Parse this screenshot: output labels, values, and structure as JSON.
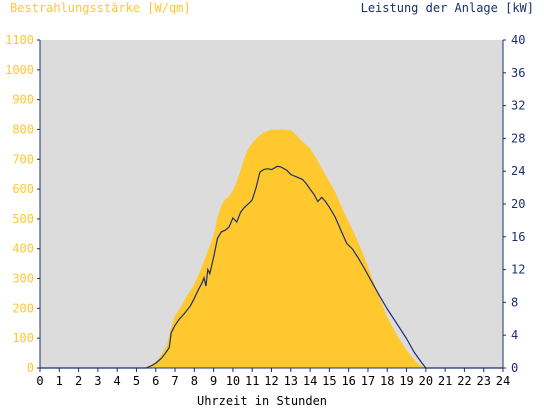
{
  "chart_data": {
    "type": "area",
    "title_left": "Bestrahlungsstärke [W/qm]",
    "title_right": "Leistung der Anlage [kW]",
    "xlabel": "Uhrzeit in Stunden",
    "xlim": [
      0,
      24
    ],
    "x_ticks": [
      "0",
      "1",
      "2",
      "3",
      "4",
      "5",
      "6",
      "7",
      "8",
      "9",
      "10",
      "11",
      "12",
      "13",
      "14",
      "15",
      "16",
      "17",
      "18",
      "19",
      "20",
      "21",
      "22",
      "23",
      "24"
    ],
    "y_left": {
      "lim": [
        0,
        1100
      ],
      "ticks": [
        "0",
        "100",
        "200",
        "300",
        "400",
        "500",
        "600",
        "700",
        "800",
        "900",
        "1000",
        "1100"
      ],
      "color": "#ffc82e"
    },
    "y_right": {
      "lim": [
        0,
        40
      ],
      "ticks": [
        "0",
        "4",
        "8",
        "12",
        "16",
        "20",
        "24",
        "28",
        "32",
        "36",
        "40"
      ],
      "color": "#1b2f6e"
    },
    "grid": false,
    "colors": {
      "plot_background": "#dcdcdc",
      "irradiance_fill": "#ffc82e",
      "power_line": "#1b2f6e",
      "axis": "#1b2f6e"
    },
    "series": [
      {
        "axis": "left",
        "style": "area",
        "points": [
          [
            0,
            0
          ],
          [
            5.3,
            0
          ],
          [
            5.6,
            5
          ],
          [
            6,
            20
          ],
          [
            6.3,
            45
          ],
          [
            6.6,
            80
          ],
          [
            6.8,
            140
          ],
          [
            7,
            175
          ],
          [
            7.3,
            205
          ],
          [
            7.6,
            240
          ],
          [
            8,
            280
          ],
          [
            8.3,
            325
          ],
          [
            8.6,
            375
          ],
          [
            8.8,
            410
          ],
          [
            9,
            445
          ],
          [
            9.2,
            505
          ],
          [
            9.4,
            545
          ],
          [
            9.6,
            565
          ],
          [
            9.8,
            575
          ],
          [
            10,
            595
          ],
          [
            10.2,
            625
          ],
          [
            10.4,
            665
          ],
          [
            10.6,
            705
          ],
          [
            10.8,
            735
          ],
          [
            11,
            755
          ],
          [
            11.3,
            775
          ],
          [
            11.6,
            790
          ],
          [
            12,
            800
          ],
          [
            12.5,
            800
          ],
          [
            13,
            798
          ],
          [
            13.3,
            780
          ],
          [
            13.6,
            760
          ],
          [
            14,
            735
          ],
          [
            14.3,
            705
          ],
          [
            14.6,
            670
          ],
          [
            15,
            625
          ],
          [
            15.3,
            590
          ],
          [
            15.6,
            545
          ],
          [
            16,
            490
          ],
          [
            16.4,
            435
          ],
          [
            16.8,
            375
          ],
          [
            17.2,
            305
          ],
          [
            17.6,
            235
          ],
          [
            18,
            170
          ],
          [
            18.5,
            110
          ],
          [
            19,
            60
          ],
          [
            19.5,
            20
          ],
          [
            19.8,
            5
          ],
          [
            20,
            0
          ],
          [
            24,
            0
          ]
        ]
      },
      {
        "axis": "right",
        "style": "line",
        "points": [
          [
            0,
            0
          ],
          [
            5.5,
            0
          ],
          [
            5.8,
            0.3
          ],
          [
            6,
            0.6
          ],
          [
            6.3,
            1.2
          ],
          [
            6.5,
            1.8
          ],
          [
            6.7,
            2.5
          ],
          [
            6.8,
            4.3
          ],
          [
            7,
            5.2
          ],
          [
            7.2,
            5.9
          ],
          [
            7.5,
            6.7
          ],
          [
            7.8,
            7.6
          ],
          [
            8,
            8.5
          ],
          [
            8.2,
            9.5
          ],
          [
            8.4,
            10.4
          ],
          [
            8.5,
            11
          ],
          [
            8.6,
            10
          ],
          [
            8.7,
            12
          ],
          [
            8.8,
            11.5
          ],
          [
            9,
            13.5
          ],
          [
            9.2,
            15.8
          ],
          [
            9.4,
            16.6
          ],
          [
            9.6,
            16.8
          ],
          [
            9.8,
            17.2
          ],
          [
            10,
            18.3
          ],
          [
            10.2,
            17.8
          ],
          [
            10.4,
            19
          ],
          [
            10.6,
            19.6
          ],
          [
            10.8,
            20
          ],
          [
            11,
            20.5
          ],
          [
            11.2,
            22
          ],
          [
            11.4,
            23.9
          ],
          [
            11.6,
            24.2
          ],
          [
            11.8,
            24.3
          ],
          [
            12,
            24.2
          ],
          [
            12.3,
            24.6
          ],
          [
            12.5,
            24.5
          ],
          [
            12.8,
            24.1
          ],
          [
            13,
            23.6
          ],
          [
            13.3,
            23.3
          ],
          [
            13.6,
            23
          ],
          [
            13.8,
            22.5
          ],
          [
            14,
            21.8
          ],
          [
            14.2,
            21.2
          ],
          [
            14.4,
            20.3
          ],
          [
            14.6,
            20.8
          ],
          [
            14.8,
            20.3
          ],
          [
            15,
            19.6
          ],
          [
            15.3,
            18.4
          ],
          [
            15.6,
            16.8
          ],
          [
            15.9,
            15.2
          ],
          [
            16.2,
            14.5
          ],
          [
            16.5,
            13.4
          ],
          [
            16.8,
            12.2
          ],
          [
            17.2,
            10.5
          ],
          [
            17.6,
            8.8
          ],
          [
            18,
            7.2
          ],
          [
            18.5,
            5.4
          ],
          [
            19,
            3.6
          ],
          [
            19.4,
            1.9
          ],
          [
            19.8,
            0.6
          ],
          [
            20,
            0
          ],
          [
            24,
            0
          ]
        ]
      }
    ]
  }
}
